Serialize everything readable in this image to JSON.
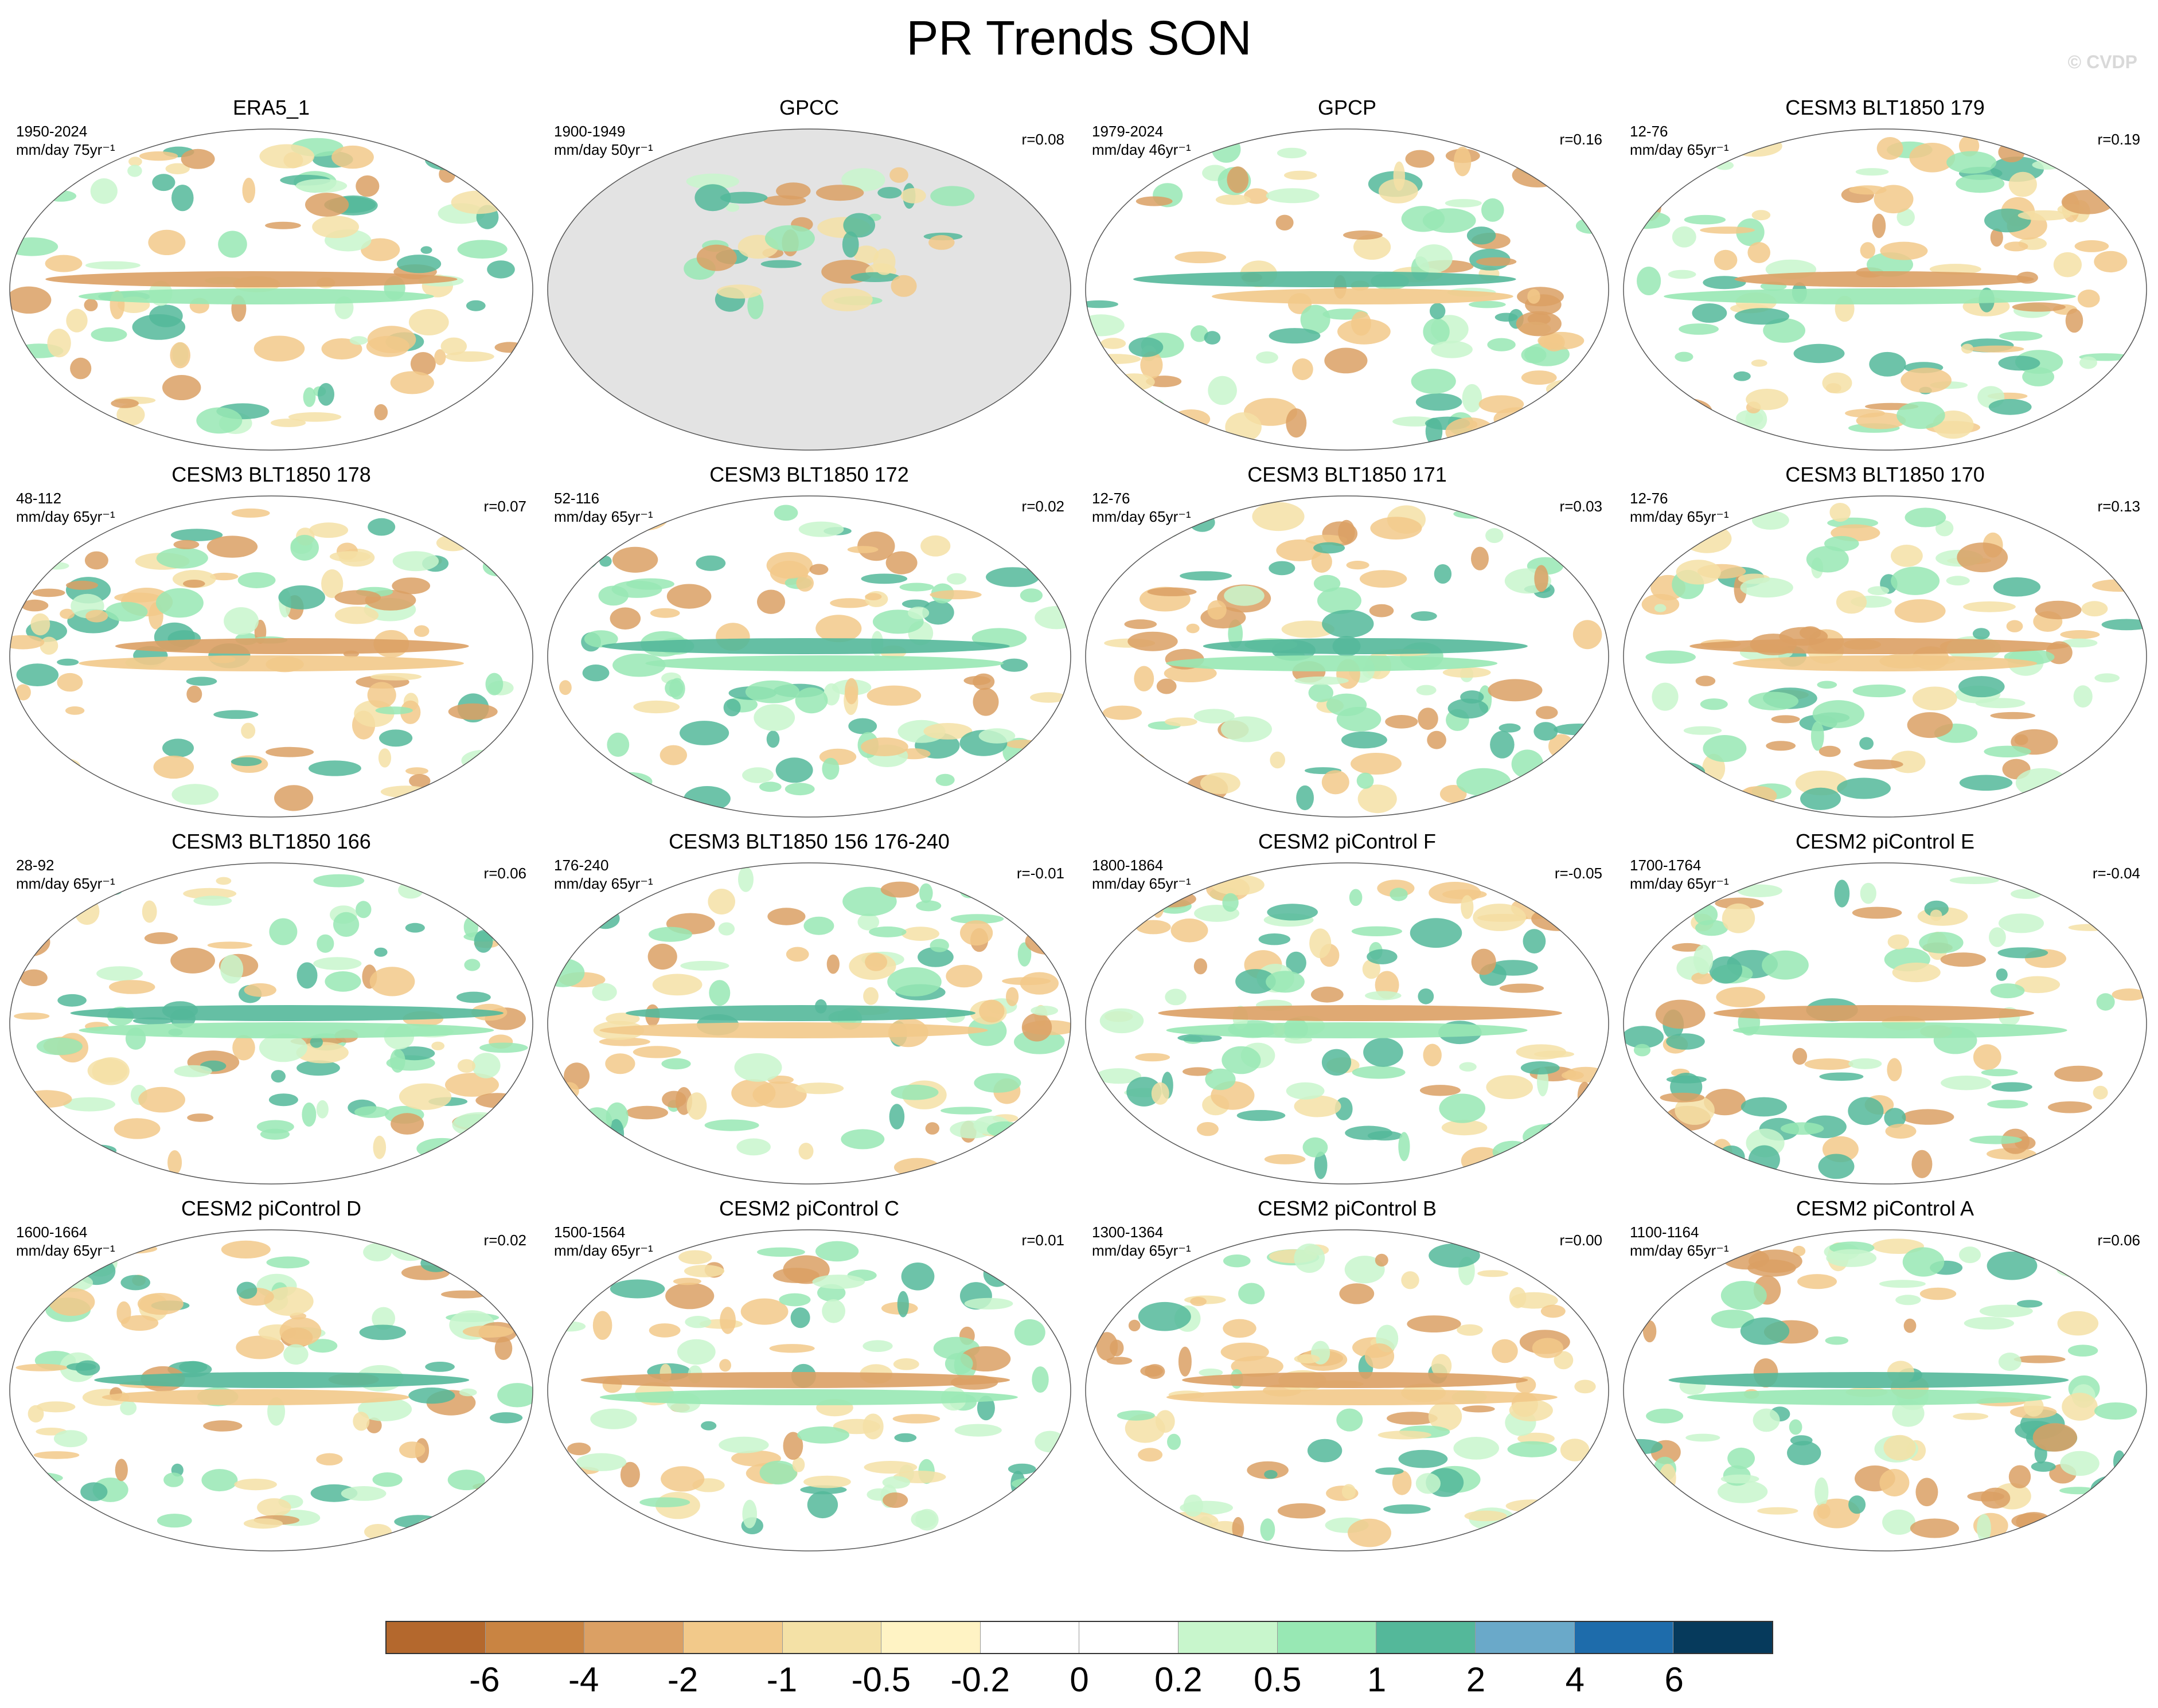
{
  "title": "PR Trends SON",
  "watermark": "© CVDP",
  "panels": [
    {
      "title": "ERA5_1",
      "years": "1950-2024",
      "units": "mm/day 75yr⁻¹",
      "corr": "",
      "gray": false
    },
    {
      "title": "GPCC",
      "years": "1900-1949",
      "units": "mm/day 50yr⁻¹",
      "corr": "r=0.08",
      "gray": true
    },
    {
      "title": "GPCP",
      "years": "1979-2024",
      "units": "mm/day 46yr⁻¹",
      "corr": "r=0.16",
      "gray": false
    },
    {
      "title": "CESM3 BLT1850 179",
      "years": "12-76",
      "units": "mm/day 65yr⁻¹",
      "corr": "r=0.19",
      "gray": false
    },
    {
      "title": "CESM3 BLT1850 178",
      "years": "48-112",
      "units": "mm/day 65yr⁻¹",
      "corr": "r=0.07",
      "gray": false
    },
    {
      "title": "CESM3 BLT1850 172",
      "years": "52-116",
      "units": "mm/day 65yr⁻¹",
      "corr": "r=0.02",
      "gray": false
    },
    {
      "title": "CESM3 BLT1850 171",
      "years": "12-76",
      "units": "mm/day 65yr⁻¹",
      "corr": "r=0.03",
      "gray": false
    },
    {
      "title": "CESM3 BLT1850 170",
      "years": "12-76",
      "units": "mm/day 65yr⁻¹",
      "corr": "r=0.13",
      "gray": false
    },
    {
      "title": "CESM3 BLT1850 166",
      "years": "28-92",
      "units": "mm/day 65yr⁻¹",
      "corr": "r=0.06",
      "gray": false
    },
    {
      "title": "CESM3 BLT1850 156 176-240",
      "years": "176-240",
      "units": "mm/day 65yr⁻¹",
      "corr": "r=-0.01",
      "gray": false
    },
    {
      "title": "CESM2 piControl F",
      "years": "1800-1864",
      "units": "mm/day 65yr⁻¹",
      "corr": "r=-0.05",
      "gray": false
    },
    {
      "title": "CESM2 piControl E",
      "years": "1700-1764",
      "units": "mm/day 65yr⁻¹",
      "corr": "r=-0.04",
      "gray": false
    },
    {
      "title": "CESM2 piControl D",
      "years": "1600-1664",
      "units": "mm/day 65yr⁻¹",
      "corr": "r=0.02",
      "gray": false
    },
    {
      "title": "CESM2 piControl C",
      "years": "1500-1564",
      "units": "mm/day 65yr⁻¹",
      "corr": "r=0.01",
      "gray": false
    },
    {
      "title": "CESM2 piControl B",
      "years": "1300-1364",
      "units": "mm/day 65yr⁻¹",
      "corr": "r=0.00",
      "gray": false
    },
    {
      "title": "CESM2 piControl A",
      "years": "1100-1164",
      "units": "mm/day 65yr⁻¹",
      "corr": "r=0.06",
      "gray": false
    }
  ],
  "colorbar": {
    "colors": [
      "#b4682d",
      "#c98442",
      "#dba064",
      "#f2c98a",
      "#f4e1a6",
      "#fff3c4",
      "#ffffff",
      "#ffffff",
      "#c8f6cc",
      "#98e8b4",
      "#54b89a",
      "#6aa9c9",
      "#1e6cab",
      "#063a5c"
    ],
    "labels": [
      "-6",
      "-4",
      "-2",
      "-1",
      "-0.5",
      "-0.2",
      "0",
      "0.2",
      "0.5",
      "1",
      "2",
      "4",
      "6"
    ]
  }
}
